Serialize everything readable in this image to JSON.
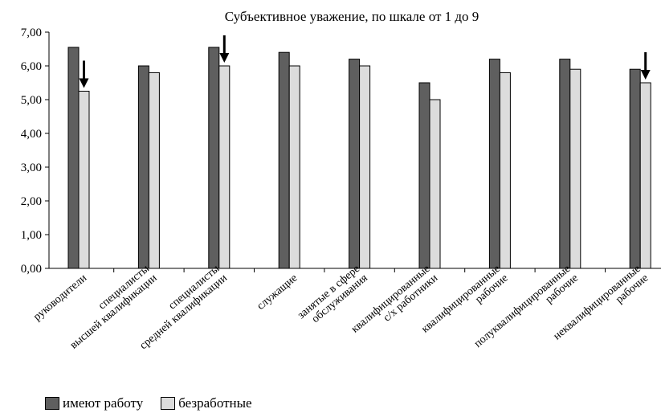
{
  "chart_data": {
    "type": "bar",
    "title": "Субъективное уважение, по шкале от 1 до 9",
    "xlabel": "",
    "ylabel": "",
    "ylim": [
      0,
      7
    ],
    "ytick_labels": [
      "0,00",
      "1,00",
      "2,00",
      "3,00",
      "4,00",
      "5,00",
      "6,00",
      "7,00"
    ],
    "grid": false,
    "legend_position": "bottom-left",
    "categories": [
      [
        "руководители"
      ],
      [
        "специалисты",
        "высшей квалификации"
      ],
      [
        "специалисты",
        "средней квалификации"
      ],
      [
        "служащие"
      ],
      [
        "занятые в сфере",
        "обслуживания"
      ],
      [
        "квалифицированные",
        "с/х работники"
      ],
      [
        "квалифицированные",
        "рабочие"
      ],
      [
        "полуквалифицированные",
        "рабочие"
      ],
      [
        "неквалифицированные",
        "рабочие"
      ]
    ],
    "series": [
      {
        "name": "имеют работу",
        "color": "#5f5f5f",
        "values": [
          6.55,
          6.0,
          6.55,
          6.4,
          6.2,
          5.5,
          6.2,
          6.2,
          5.9
        ]
      },
      {
        "name": "безработные",
        "color": "#dcdcdc",
        "values": [
          5.25,
          5.8,
          6.0,
          6.0,
          6.0,
          5.0,
          5.8,
          5.9,
          5.5
        ]
      }
    ],
    "annotations": [
      {
        "type": "arrow",
        "category_index": 0,
        "series_index": 1
      },
      {
        "type": "arrow",
        "category_index": 2,
        "series_index": 1
      },
      {
        "type": "arrow",
        "category_index": 8,
        "series_index": 1
      }
    ]
  }
}
